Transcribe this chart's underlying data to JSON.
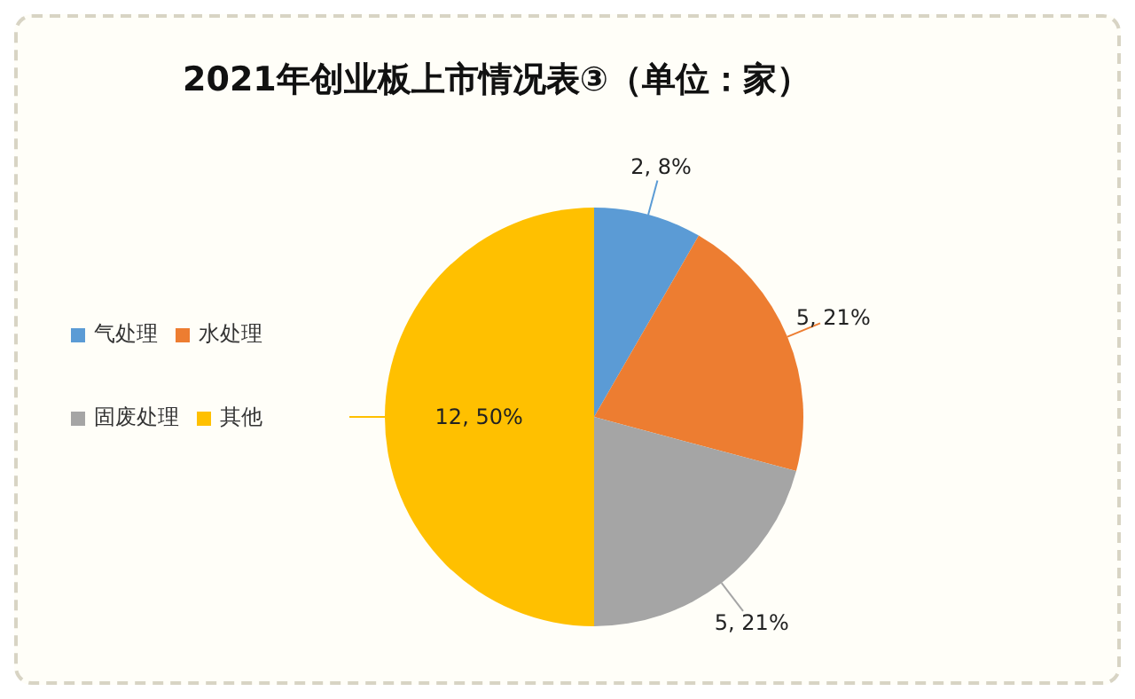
{
  "chart_data": {
    "type": "pie",
    "title": "2021年创业板上市情况表③（单位：家）",
    "categories": [
      "气处理",
      "水处理",
      "固废处理",
      "其他"
    ],
    "values": [
      2,
      5,
      5,
      12
    ],
    "colors": [
      "#5b9bd5",
      "#ed7d31",
      "#a5a5a5",
      "#ffc000"
    ],
    "value_labels": [
      "2, 8%",
      "5, 21%",
      "5, 21%",
      "12, 50%"
    ],
    "legend": "left"
  }
}
